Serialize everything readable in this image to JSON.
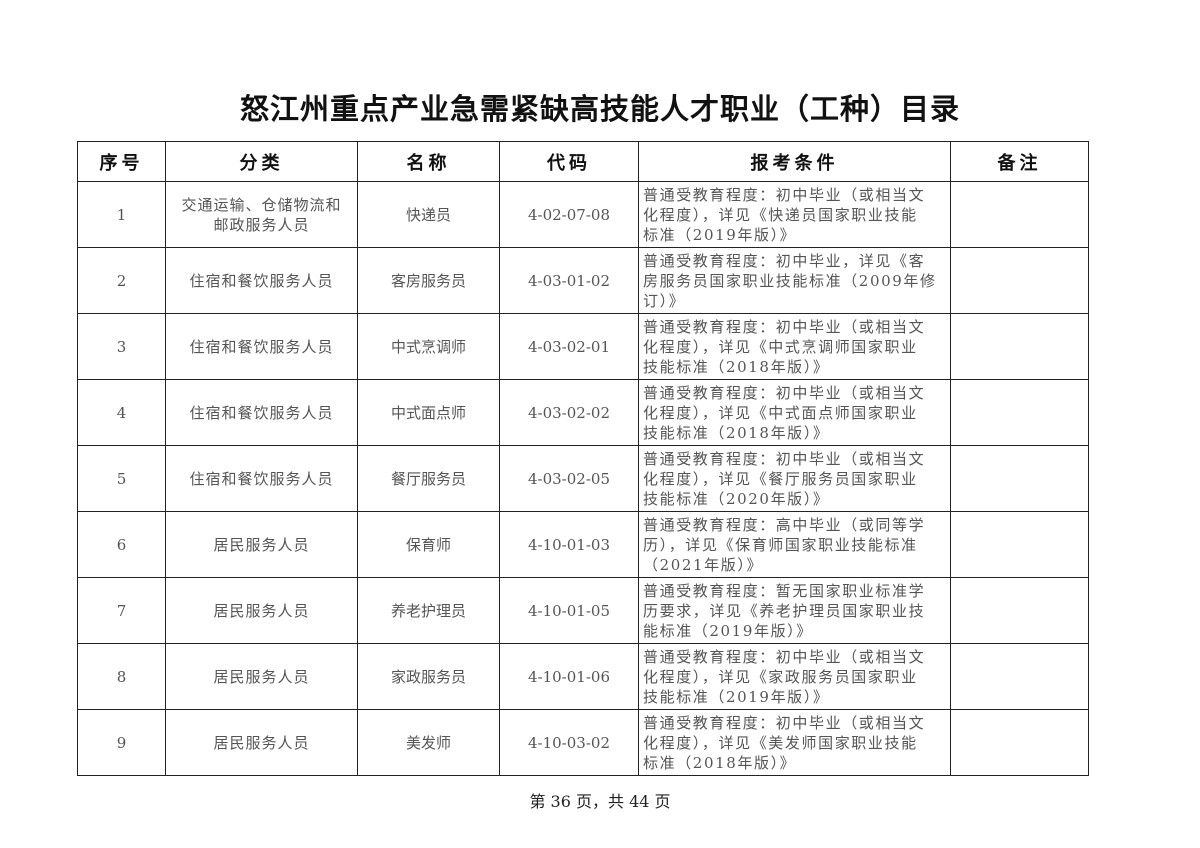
{
  "title": "怒江州重点产业急需紧缺高技能人才职业（工种）目录",
  "headers": [
    "序号",
    "分类",
    "名称",
    "代码",
    "报考条件",
    "备注"
  ],
  "rows": [
    {
      "no": "1",
      "category": [
        "交通运输、仓储物流和",
        "邮政服务人员"
      ],
      "name": "快递员",
      "code": "4-02-07-08",
      "condition": [
        "普通受教育程度：初中毕业（或相当文",
        "化程度），详见《快递员国家职业技能",
        "标准（2019年版）》"
      ],
      "note": ""
    },
    {
      "no": "2",
      "category": [
        "住宿和餐饮服务人员"
      ],
      "name": "客房服务员",
      "code": "4-03-01-02",
      "condition": [
        "普通受教育程度：初中毕业，详见《客",
        "房服务员国家职业技能标准（2009年修",
        "订）》"
      ],
      "note": ""
    },
    {
      "no": "3",
      "category": [
        "住宿和餐饮服务人员"
      ],
      "name": "中式烹调师",
      "code": "4-03-02-01",
      "condition": [
        "普通受教育程度：初中毕业（或相当文",
        "化程度），详见《中式烹调师国家职业",
        "技能标准（2018年版）》"
      ],
      "note": ""
    },
    {
      "no": "4",
      "category": [
        "住宿和餐饮服务人员"
      ],
      "name": "中式面点师",
      "code": "4-03-02-02",
      "condition": [
        "普通受教育程度：初中毕业（或相当文",
        "化程度），详见《中式面点师国家职业",
        "技能标准（2018年版）》"
      ],
      "note": ""
    },
    {
      "no": "5",
      "category": [
        "住宿和餐饮服务人员"
      ],
      "name": "餐厅服务员",
      "code": "4-03-02-05",
      "condition": [
        "普通受教育程度：初中毕业（或相当文",
        "化程度），详见《餐厅服务员国家职业",
        "技能标准（2020年版）》"
      ],
      "note": ""
    },
    {
      "no": "6",
      "category": [
        "居民服务人员"
      ],
      "name": "保育师",
      "code": "4-10-01-03",
      "condition": [
        "普通受教育程度：高中毕业（或同等学",
        "历），详见《保育师国家职业技能标准",
        "（2021年版）》"
      ],
      "note": ""
    },
    {
      "no": "7",
      "category": [
        "居民服务人员"
      ],
      "name": "养老护理员",
      "code": "4-10-01-05",
      "condition": [
        "普通受教育程度：暂无国家职业标准学",
        "历要求，详见《养老护理员国家职业技",
        "能标准（2019年版）》"
      ],
      "note": ""
    },
    {
      "no": "8",
      "category": [
        "居民服务人员"
      ],
      "name": "家政服务员",
      "code": "4-10-01-06",
      "condition": [
        "普通受教育程度：初中毕业（或相当文",
        "化程度），详见《家政服务员国家职业",
        "技能标准（2019年版）》"
      ],
      "note": ""
    },
    {
      "no": "9",
      "category": [
        "居民服务人员"
      ],
      "name": "美发师",
      "code": "4-10-03-02",
      "condition": [
        "普通受教育程度：初中毕业（或相当文",
        "化程度），详见《美发师国家职业技能",
        "标准（2018年版）》"
      ],
      "note": ""
    }
  ],
  "footer": "第 36 页，共 44 页"
}
